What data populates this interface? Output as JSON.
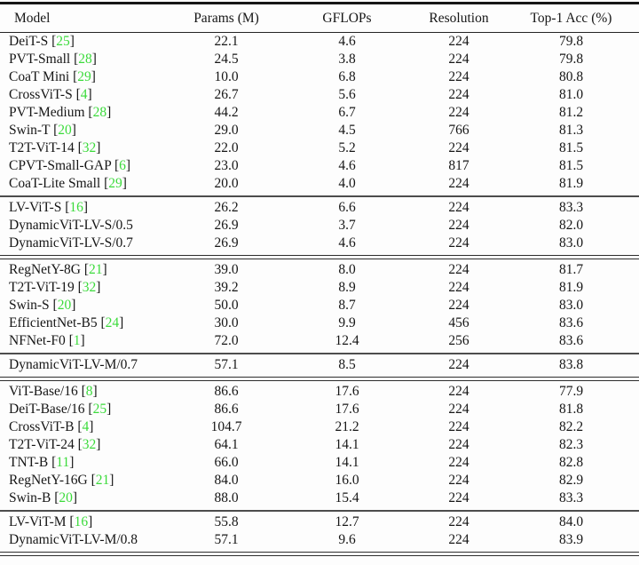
{
  "colors": {
    "citation_green": "#3bdb3b",
    "text": "#161616",
    "rule_dark": "#242424",
    "rule_gray": "#4d4d4d",
    "background": "#fdfdfd"
  },
  "table": {
    "columns": [
      "Model",
      "Params (M)",
      "GFLOPs",
      "Resolution",
      "Top-1 Acc (%)"
    ],
    "groups": [
      {
        "separator_after": "single",
        "rows": [
          {
            "model": "DeiT-S",
            "cite": "25",
            "params": "22.1",
            "gflops": "4.6",
            "resolution": "224",
            "top1_acc": "79.8"
          },
          {
            "model": "PVT-Small",
            "cite": "28",
            "params": "24.5",
            "gflops": "3.8",
            "resolution": "224",
            "top1_acc": "79.8"
          },
          {
            "model": "CoaT Mini",
            "cite": "29",
            "params": "10.0",
            "gflops": "6.8",
            "resolution": "224",
            "top1_acc": "80.8"
          },
          {
            "model": "CrossViT-S",
            "cite": "4",
            "params": "26.7",
            "gflops": "5.6",
            "resolution": "224",
            "top1_acc": "81.0"
          },
          {
            "model": "PVT-Medium",
            "cite": "28",
            "params": "44.2",
            "gflops": "6.7",
            "resolution": "224",
            "top1_acc": "81.2"
          },
          {
            "model": "Swin-T",
            "cite": "20",
            "params": "29.0",
            "gflops": "4.5",
            "resolution": "766",
            "top1_acc": "81.3"
          },
          {
            "model": "T2T-ViT-14",
            "cite": "32",
            "params": "22.0",
            "gflops": "5.2",
            "resolution": "224",
            "top1_acc": "81.5"
          },
          {
            "model": "CPVT-Small-GAP",
            "cite": "6",
            "params": "23.0",
            "gflops": "4.6",
            "resolution": "817",
            "top1_acc": "81.5"
          },
          {
            "model": "CoaT-Lite Small",
            "cite": "29",
            "params": "20.0",
            "gflops": "4.0",
            "resolution": "224",
            "top1_acc": "81.9"
          }
        ]
      },
      {
        "separator_after": "double",
        "rows": [
          {
            "model": "LV-ViT-S",
            "cite": "16",
            "params": "26.2",
            "gflops": "6.6",
            "resolution": "224",
            "top1_acc": "83.3"
          },
          {
            "model": "DynamicViT-LV-S/0.5",
            "cite": "",
            "params": "26.9",
            "gflops": "3.7",
            "resolution": "224",
            "top1_acc": "82.0"
          },
          {
            "model": "DynamicViT-LV-S/0.7",
            "cite": "",
            "params": "26.9",
            "gflops": "4.6",
            "resolution": "224",
            "top1_acc": "83.0"
          }
        ]
      },
      {
        "separator_after": "single",
        "rows": [
          {
            "model": "RegNetY-8G",
            "cite": "21",
            "params": "39.0",
            "gflops": "8.0",
            "resolution": "224",
            "top1_acc": "81.7"
          },
          {
            "model": "T2T-ViT-19",
            "cite": "32",
            "params": "39.2",
            "gflops": "8.9",
            "resolution": "224",
            "top1_acc": "81.9"
          },
          {
            "model": "Swin-S",
            "cite": "20",
            "params": "50.0",
            "gflops": "8.7",
            "resolution": "224",
            "top1_acc": "83.0"
          },
          {
            "model": "EfficientNet-B5",
            "cite": "24",
            "params": "30.0",
            "gflops": "9.9",
            "resolution": "456",
            "top1_acc": "83.6"
          },
          {
            "model": "NFNet-F0",
            "cite": "1",
            "params": "72.0",
            "gflops": "12.4",
            "resolution": "256",
            "top1_acc": "83.6"
          }
        ]
      },
      {
        "separator_after": "double",
        "rows": [
          {
            "model": "DynamicViT-LV-M/0.7",
            "cite": "",
            "params": "57.1",
            "gflops": "8.5",
            "resolution": "224",
            "top1_acc": "83.8"
          }
        ]
      },
      {
        "separator_after": "single",
        "rows": [
          {
            "model": "ViT-Base/16",
            "cite": "8",
            "params": "86.6",
            "gflops": "17.6",
            "resolution": "224",
            "top1_acc": "77.9"
          },
          {
            "model": "DeiT-Base/16",
            "cite": "25",
            "params": "86.6",
            "gflops": "17.6",
            "resolution": "224",
            "top1_acc": "81.8"
          },
          {
            "model": "CrossViT-B",
            "cite": "4",
            "params": "104.7",
            "gflops": "21.2",
            "resolution": "224",
            "top1_acc": "82.2"
          },
          {
            "model": "T2T-ViT-24",
            "cite": "32",
            "params": "64.1",
            "gflops": "14.1",
            "resolution": "224",
            "top1_acc": "82.3"
          },
          {
            "model": "TNT-B",
            "cite": "11",
            "params": "66.0",
            "gflops": "14.1",
            "resolution": "224",
            "top1_acc": "82.8"
          },
          {
            "model": "RegNetY-16G",
            "cite": "21",
            "params": "84.0",
            "gflops": "16.0",
            "resolution": "224",
            "top1_acc": "82.9"
          },
          {
            "model": "Swin-B",
            "cite": "20",
            "params": "88.0",
            "gflops": "15.4",
            "resolution": "224",
            "top1_acc": "83.3"
          }
        ]
      },
      {
        "separator_after": "double",
        "rows": [
          {
            "model": "LV-ViT-M",
            "cite": "16",
            "params": "55.8",
            "gflops": "12.7",
            "resolution": "224",
            "top1_acc": "84.0"
          },
          {
            "model": "DynamicViT-LV-M/0.8",
            "cite": "",
            "params": "57.1",
            "gflops": "9.6",
            "resolution": "224",
            "top1_acc": "83.9"
          }
        ]
      }
    ]
  }
}
